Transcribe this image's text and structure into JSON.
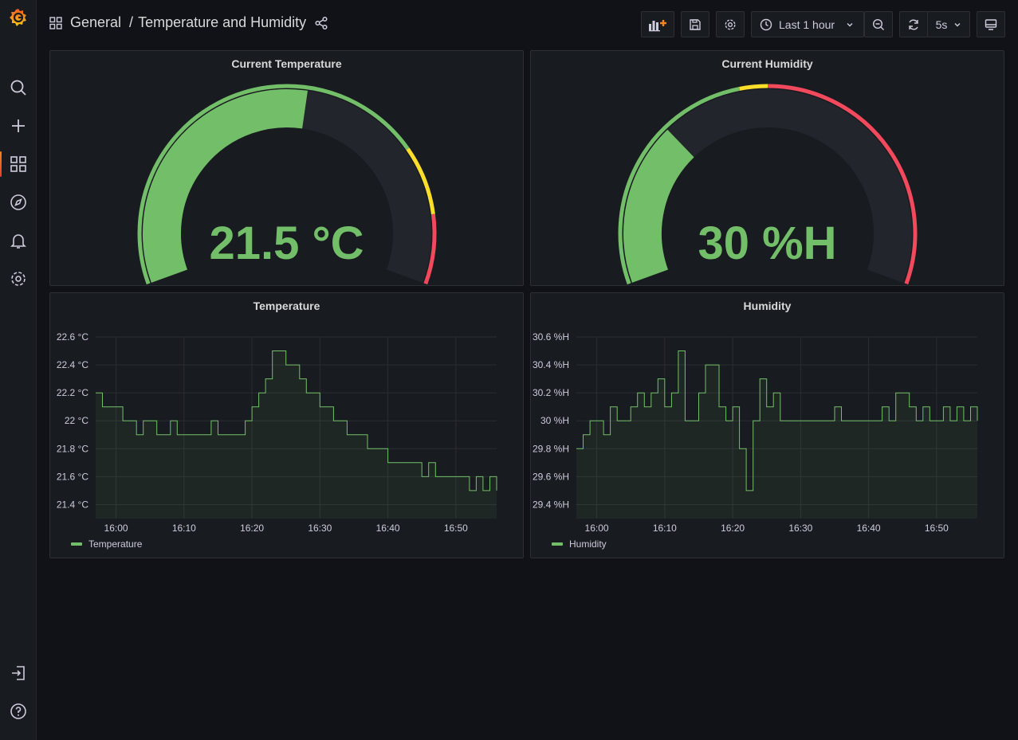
{
  "nav": {
    "items": [
      {
        "name": "search-icon"
      },
      {
        "name": "plus-icon"
      },
      {
        "name": "dashboards-icon",
        "active": true
      },
      {
        "name": "explore-icon"
      },
      {
        "name": "alerting-icon"
      },
      {
        "name": "configuration-icon"
      }
    ],
    "bottom": [
      {
        "name": "sign-in-icon"
      },
      {
        "name": "help-icon"
      }
    ]
  },
  "breadcrumb": {
    "folder": "General",
    "separator": "/",
    "title": "Temperature and Humidity"
  },
  "toolbar": {
    "time_range": "Last 1 hour",
    "refresh_interval": "5s"
  },
  "colors": {
    "green": "#73bf69",
    "yellow": "#fade2a",
    "orange": "#f2b738",
    "red": "#f2495c",
    "panel_bg": "#181b1f"
  },
  "gauges": [
    {
      "title": "Current Temperature",
      "display": "21.5 °C",
      "value": 21.5,
      "min": 0,
      "max": 40,
      "thresholds": [
        {
          "color": "green",
          "from": 0
        },
        {
          "color": "yellow",
          "from": 30
        },
        {
          "color": "red",
          "from": 35
        }
      ]
    },
    {
      "title": "Current Humidity",
      "display": "30 %H",
      "value": 30,
      "min": 0,
      "max": 100,
      "thresholds": [
        {
          "color": "green",
          "from": 0
        },
        {
          "color": "yellow",
          "from": 45
        },
        {
          "color": "red",
          "from": 50
        }
      ]
    }
  ],
  "chart_data": [
    {
      "type": "line",
      "title": "Temperature",
      "series": [
        {
          "name": "Temperature"
        }
      ],
      "y_ticks": [
        "22.6 °C",
        "22.4 °C",
        "22.2 °C",
        "22 °C",
        "21.8 °C",
        "21.6 °C",
        "21.4 °C"
      ],
      "ylim": [
        21.3,
        22.6
      ],
      "x_ticks": [
        "16:00",
        "16:10",
        "16:20",
        "16:30",
        "16:40",
        "16:50"
      ],
      "xlim": [
        "15:57",
        "16:56"
      ],
      "x": [
        "15:57",
        "15:58",
        "15:59",
        "16:00",
        "16:01",
        "16:02",
        "16:03",
        "16:04",
        "16:05",
        "16:06",
        "16:07",
        "16:08",
        "16:09",
        "16:10",
        "16:11",
        "16:12",
        "16:13",
        "16:14",
        "16:15",
        "16:16",
        "16:17",
        "16:18",
        "16:19",
        "16:20",
        "16:21",
        "16:22",
        "16:23",
        "16:24",
        "16:25",
        "16:26",
        "16:27",
        "16:28",
        "16:29",
        "16:30",
        "16:31",
        "16:32",
        "16:33",
        "16:34",
        "16:35",
        "16:36",
        "16:37",
        "16:38",
        "16:39",
        "16:40",
        "16:41",
        "16:42",
        "16:43",
        "16:44",
        "16:45",
        "16:46",
        "16:47",
        "16:48",
        "16:49",
        "16:50",
        "16:51",
        "16:52",
        "16:53",
        "16:54",
        "16:55",
        "16:56"
      ],
      "values": [
        22.2,
        22.1,
        22.1,
        22.1,
        22.0,
        22.0,
        21.9,
        22.0,
        22.0,
        21.9,
        21.9,
        22.0,
        21.9,
        21.9,
        21.9,
        21.9,
        21.9,
        22.0,
        21.9,
        21.9,
        21.9,
        21.9,
        22.0,
        22.1,
        22.2,
        22.3,
        22.5,
        22.5,
        22.4,
        22.4,
        22.3,
        22.2,
        22.2,
        22.1,
        22.1,
        22.0,
        22.0,
        21.9,
        21.9,
        21.9,
        21.8,
        21.8,
        21.8,
        21.7,
        21.7,
        21.7,
        21.7,
        21.7,
        21.6,
        21.7,
        21.6,
        21.6,
        21.6,
        21.6,
        21.6,
        21.5,
        21.6,
        21.5,
        21.6,
        21.5
      ],
      "grid": true,
      "legend": "bottom-left"
    },
    {
      "type": "line",
      "title": "Humidity",
      "series": [
        {
          "name": "Humidity"
        }
      ],
      "y_ticks": [
        "30.6 %H",
        "30.4 %H",
        "30.2 %H",
        "30 %H",
        "29.8 %H",
        "29.6 %H",
        "29.4 %H"
      ],
      "ylim": [
        29.3,
        30.6
      ],
      "x_ticks": [
        "16:00",
        "16:10",
        "16:20",
        "16:30",
        "16:40",
        "16:50"
      ],
      "xlim": [
        "15:57",
        "16:56"
      ],
      "x": [
        "15:57",
        "15:58",
        "15:59",
        "16:00",
        "16:01",
        "16:02",
        "16:03",
        "16:04",
        "16:05",
        "16:06",
        "16:07",
        "16:08",
        "16:09",
        "16:10",
        "16:11",
        "16:12",
        "16:13",
        "16:14",
        "16:15",
        "16:16",
        "16:17",
        "16:18",
        "16:19",
        "16:20",
        "16:21",
        "16:22",
        "16:23",
        "16:24",
        "16:25",
        "16:26",
        "16:27",
        "16:28",
        "16:29",
        "16:30",
        "16:31",
        "16:32",
        "16:33",
        "16:34",
        "16:35",
        "16:36",
        "16:37",
        "16:38",
        "16:39",
        "16:40",
        "16:41",
        "16:42",
        "16:43",
        "16:44",
        "16:45",
        "16:46",
        "16:47",
        "16:48",
        "16:49",
        "16:50",
        "16:51",
        "16:52",
        "16:53",
        "16:54",
        "16:55",
        "16:56"
      ],
      "values": [
        29.8,
        29.9,
        30.0,
        30.0,
        29.9,
        30.1,
        30.0,
        30.0,
        30.1,
        30.2,
        30.1,
        30.2,
        30.3,
        30.1,
        30.2,
        30.5,
        30.0,
        30.0,
        30.2,
        30.4,
        30.4,
        30.1,
        30.0,
        30.1,
        29.8,
        29.5,
        30.0,
        30.3,
        30.1,
        30.2,
        30.0,
        30.0,
        30.0,
        30.0,
        30.0,
        30.0,
        30.0,
        30.0,
        30.1,
        30.0,
        30.0,
        30.0,
        30.0,
        30.0,
        30.0,
        30.1,
        30.0,
        30.2,
        30.2,
        30.1,
        30.0,
        30.1,
        30.0,
        30.0,
        30.1,
        30.0,
        30.1,
        30.0,
        30.1,
        30.0
      ],
      "grid": true,
      "legend": "bottom-left"
    }
  ]
}
